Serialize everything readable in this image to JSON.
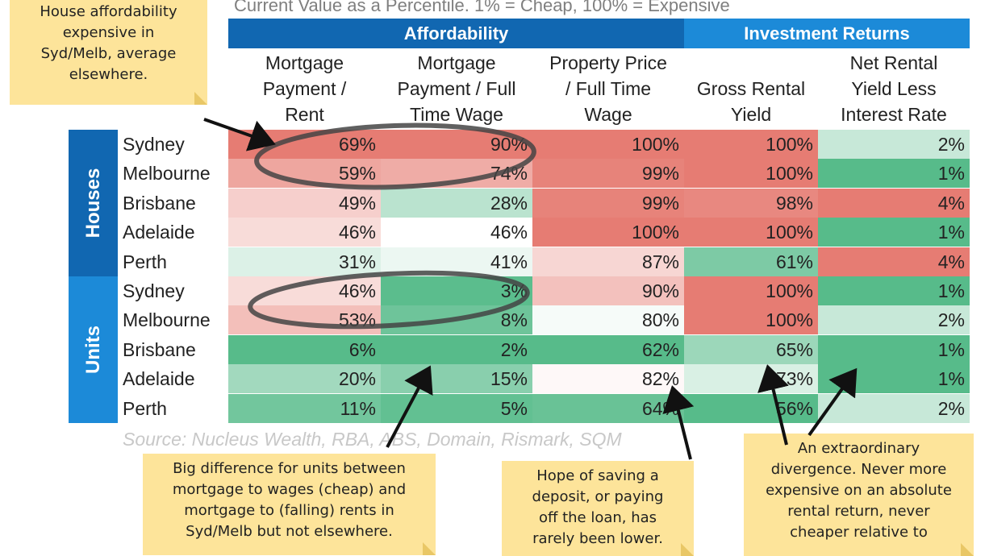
{
  "chart_data": {
    "type": "table",
    "subtitle": "Current Value as a Percentile. 1% = Cheap, 100% = Expensive",
    "column_groups": [
      {
        "name": "Affordability",
        "columns": 3,
        "color": "#1167b1"
      },
      {
        "name": "Investment Returns",
        "columns": 2,
        "color": "#1c8ad8"
      }
    ],
    "columns": [
      {
        "lines": [
          "Mortgage",
          "Payment /",
          "Rent"
        ]
      },
      {
        "lines": [
          "Mortgage",
          "Payment / Full",
          "Time Wage"
        ]
      },
      {
        "lines": [
          "Property Price",
          "/ Full Time",
          "Wage"
        ]
      },
      {
        "lines": [
          "Gross Rental",
          "Yield"
        ]
      },
      {
        "lines": [
          "Net Rental",
          "Yield Less",
          "Interest Rate"
        ]
      }
    ],
    "row_groups": [
      {
        "name": "Houses",
        "color": "#1167b1",
        "rows": [
          {
            "label": "Sydney",
            "values": [
              69,
              90,
              100,
              100,
              2
            ]
          },
          {
            "label": "Melbourne",
            "values": [
              59,
              74,
              99,
              100,
              1
            ]
          },
          {
            "label": "Brisbane",
            "values": [
              49,
              28,
              99,
              98,
              4
            ]
          },
          {
            "label": "Adelaide",
            "values": [
              46,
              46,
              100,
              100,
              1
            ]
          },
          {
            "label": "Perth",
            "values": [
              31,
              41,
              87,
              61,
              4
            ]
          }
        ]
      },
      {
        "name": "Units",
        "color": "#1c8ad8",
        "rows": [
          {
            "label": "Sydney",
            "values": [
              46,
              3,
              90,
              100,
              1
            ]
          },
          {
            "label": "Melbourne",
            "values": [
              53,
              8,
              80,
              100,
              2
            ]
          },
          {
            "label": "Brisbane",
            "values": [
              6,
              2,
              62,
              65,
              1
            ]
          },
          {
            "label": "Adelaide",
            "values": [
              20,
              15,
              82,
              73,
              1
            ]
          },
          {
            "label": "Perth",
            "values": [
              11,
              5,
              64,
              56,
              2
            ]
          }
        ]
      }
    ],
    "value_suffix": "%",
    "color_scale": {
      "low": "#57bb8a",
      "mid": "#ffffff",
      "high": "#e67c73"
    },
    "source": "Source: Nucleus Wealth, RBA, ABS, Domain, Rismark, SQM"
  },
  "notes": [
    {
      "lines": [
        "House affordability",
        "expensive in",
        "Syd/Melb, average",
        "elsewhere."
      ]
    },
    {
      "lines": [
        "Big difference for units between",
        "mortgage to wages (cheap) and",
        "mortgage to (falling) rents in",
        "Syd/Melb but not elsewhere."
      ]
    },
    {
      "lines": [
        "Hope of saving a",
        "deposit, or paying",
        "off the loan, has",
        "rarely been lower."
      ]
    },
    {
      "lines": [
        "An extraordinary",
        "divergence. Never more",
        "expensive on an absolute",
        "rental return, never",
        "cheaper relative to"
      ]
    }
  ],
  "note_color": "#fde49a"
}
